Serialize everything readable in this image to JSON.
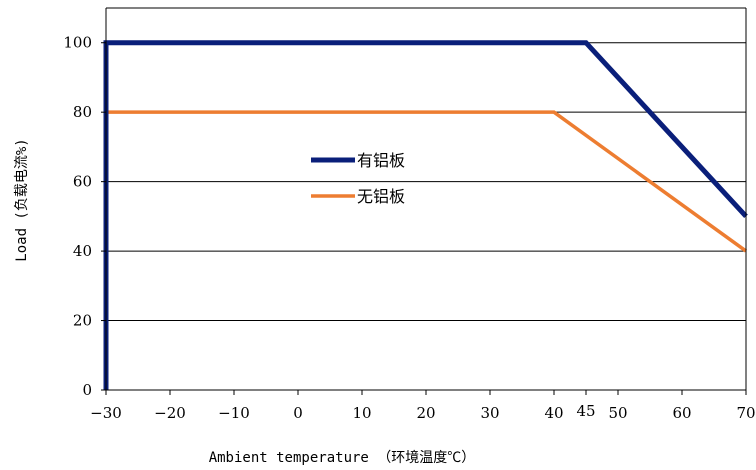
{
  "chart_data": {
    "type": "line",
    "title": "",
    "xlabel": "Ambient temperature （环境温度℃）",
    "ylabel": "Load (负载电流%)",
    "xlim": [
      -30,
      70
    ],
    "ylim": [
      0,
      110
    ],
    "x_ticks": [
      {
        "value": -30,
        "label": "−30"
      },
      {
        "value": -20,
        "label": "−20"
      },
      {
        "value": -10,
        "label": "−10"
      },
      {
        "value": 0,
        "label": "0"
      },
      {
        "value": 10,
        "label": "10"
      },
      {
        "value": 20,
        "label": "20"
      },
      {
        "value": 30,
        "label": "30"
      },
      {
        "value": 40,
        "label": "40"
      },
      {
        "value": 45,
        "label": "45"
      },
      {
        "value": 50,
        "label": "50"
      },
      {
        "value": 60,
        "label": "60"
      },
      {
        "value": 70,
        "label": "70"
      }
    ],
    "y_ticks": [
      {
        "value": 0,
        "label": "0"
      },
      {
        "value": 20,
        "label": "20"
      },
      {
        "value": 40,
        "label": "40"
      },
      {
        "value": 60,
        "label": "60"
      },
      {
        "value": 80,
        "label": "80"
      },
      {
        "value": 100,
        "label": "100"
      }
    ],
    "grid": "horizontal",
    "legend_position": "center",
    "series": [
      {
        "name": "有铝板",
        "color": "#0a1f7a",
        "points": [
          [
            -30,
            0
          ],
          [
            -30,
            100
          ],
          [
            45,
            100
          ],
          [
            70,
            50
          ]
        ]
      },
      {
        "name": "无铝板",
        "color": "#ed7d31",
        "points": [
          [
            -30,
            0
          ],
          [
            -30,
            80
          ],
          [
            40,
            80
          ],
          [
            70,
            40
          ]
        ]
      }
    ]
  }
}
